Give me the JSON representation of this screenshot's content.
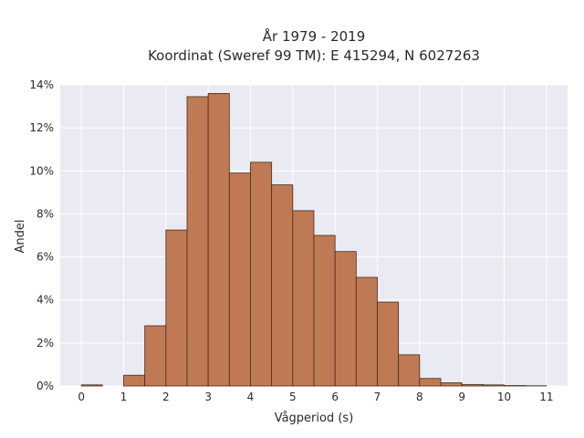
{
  "chart_data": {
    "type": "bar",
    "title_lines": [
      "År 1979 - 2019",
      "Koordinat (Sweref 99 TM): E 415294, N 6027263"
    ],
    "xlabel": "Vågperiod (s)",
    "ylabel": "Andel",
    "xlim": [
      -0.5,
      11.5
    ],
    "ylim": [
      0,
      14
    ],
    "x_ticks": [
      0,
      1,
      2,
      3,
      4,
      5,
      6,
      7,
      8,
      9,
      10,
      11
    ],
    "y_ticks": [
      0,
      2,
      4,
      6,
      8,
      10,
      12,
      14
    ],
    "y_tick_suffix": "%",
    "grid": true,
    "bar_color": "#bf7a55",
    "bar_edge_color": "#4a2a1a",
    "plot_background": "#eaeaf2",
    "bins": [
      {
        "start": 0.0,
        "end": 0.5,
        "value": 0.05
      },
      {
        "start": 0.5,
        "end": 1.0,
        "value": 0.0
      },
      {
        "start": 1.0,
        "end": 1.5,
        "value": 0.5
      },
      {
        "start": 1.5,
        "end": 2.0,
        "value": 2.8
      },
      {
        "start": 2.0,
        "end": 2.5,
        "value": 7.25
      },
      {
        "start": 2.5,
        "end": 3.0,
        "value": 13.45
      },
      {
        "start": 3.0,
        "end": 3.5,
        "value": 13.6
      },
      {
        "start": 3.5,
        "end": 4.0,
        "value": 9.9
      },
      {
        "start": 4.0,
        "end": 4.5,
        "value": 10.4
      },
      {
        "start": 4.5,
        "end": 5.0,
        "value": 9.35
      },
      {
        "start": 5.0,
        "end": 5.5,
        "value": 8.15
      },
      {
        "start": 5.5,
        "end": 6.0,
        "value": 7.0
      },
      {
        "start": 6.0,
        "end": 6.5,
        "value": 6.25
      },
      {
        "start": 6.5,
        "end": 7.0,
        "value": 5.05
      },
      {
        "start": 7.0,
        "end": 7.5,
        "value": 3.9
      },
      {
        "start": 7.5,
        "end": 8.0,
        "value": 1.45
      },
      {
        "start": 8.0,
        "end": 8.5,
        "value": 0.35
      },
      {
        "start": 8.5,
        "end": 9.0,
        "value": 0.15
      },
      {
        "start": 9.0,
        "end": 9.5,
        "value": 0.07
      },
      {
        "start": 9.5,
        "end": 10.0,
        "value": 0.05
      },
      {
        "start": 10.0,
        "end": 10.5,
        "value": 0.02
      },
      {
        "start": 10.5,
        "end": 11.0,
        "value": 0.01
      }
    ]
  }
}
